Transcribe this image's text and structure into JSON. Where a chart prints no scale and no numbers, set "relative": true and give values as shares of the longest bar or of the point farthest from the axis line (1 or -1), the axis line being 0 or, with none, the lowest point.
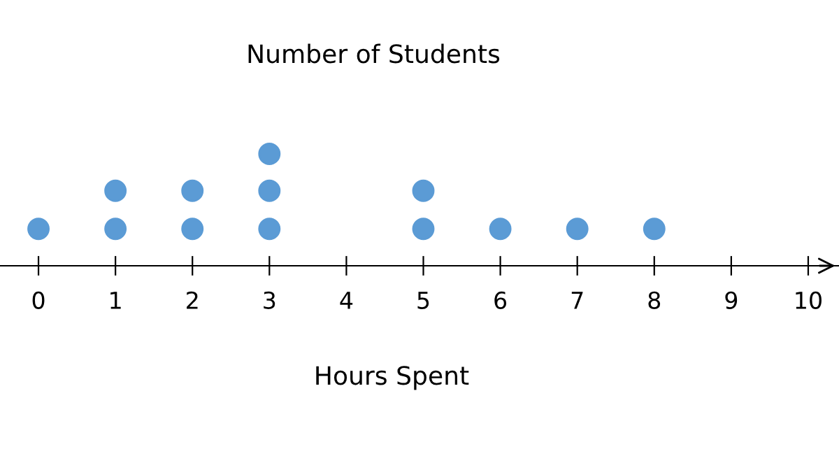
{
  "chart_data": {
    "type": "scatter",
    "title": "Number of Students",
    "xlabel": "Hours Spent",
    "relative": true,
    "series": [
      {
        "color": "#5b9bd5",
        "x": [
          0,
          1,
          1,
          2,
          2,
          3,
          3,
          3,
          5,
          5,
          6,
          7,
          8
        ],
        "values": [
          0.33,
          0.33,
          0.67,
          0.33,
          0.67,
          0.33,
          0.67,
          1,
          0.33,
          0.67,
          0.33,
          0.33,
          0.33
        ]
      }
    ],
    "xlim": [
      -0.5,
      10.4
    ],
    "xticks": [
      0,
      1,
      2,
      3,
      4,
      5,
      6,
      7,
      8,
      9,
      10
    ],
    "grid": false,
    "legend": false,
    "marker": "circle"
  }
}
